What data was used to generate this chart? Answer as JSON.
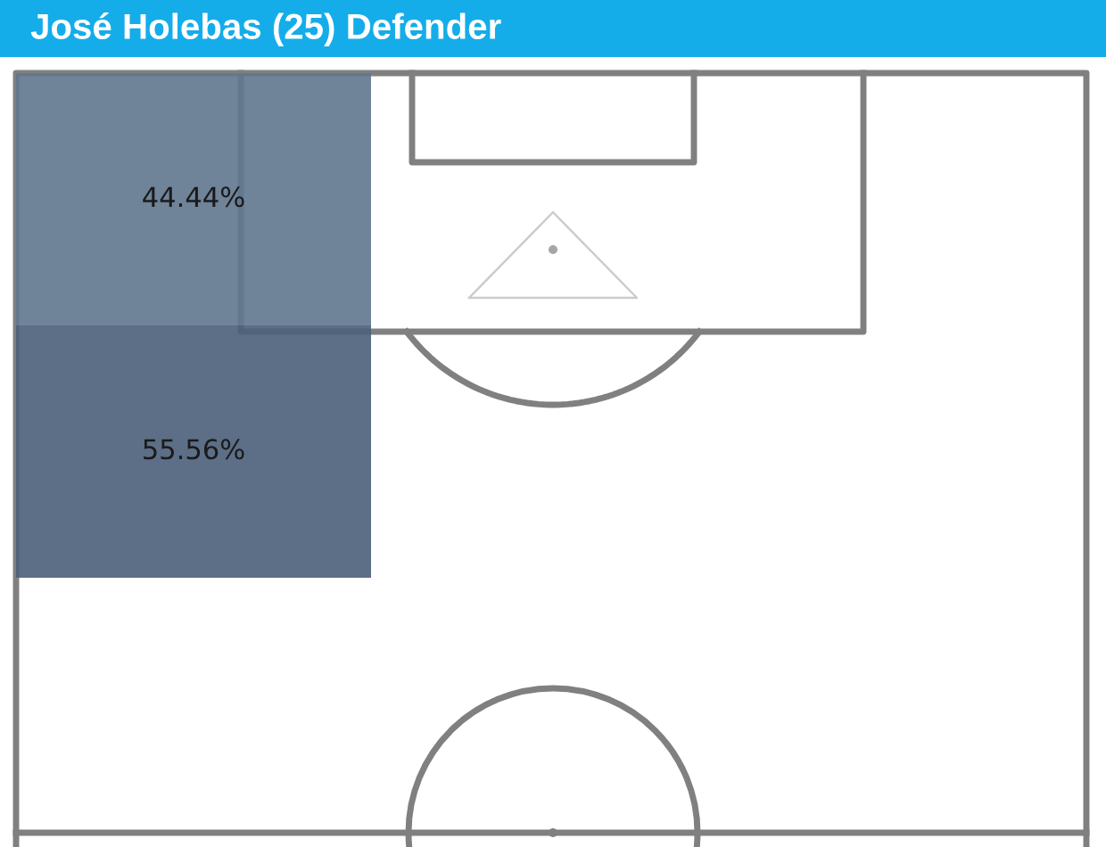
{
  "chart_data": {
    "type": "other",
    "title": "José Holebas (25) Defender",
    "categories": [
      null,
      null
    ],
    "values": [
      44.44,
      55.56
    ],
    "value_labels": [
      "44.44%",
      "55.56%"
    ]
  }
}
